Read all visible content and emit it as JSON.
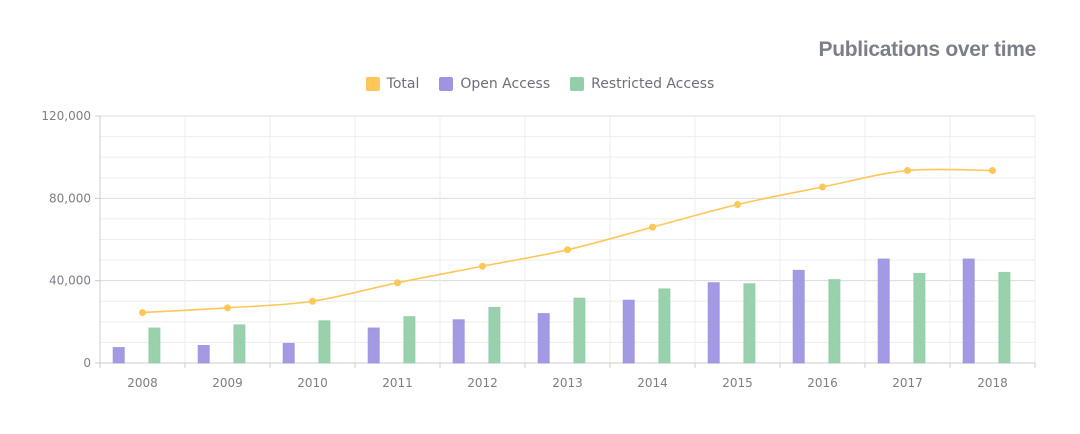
{
  "chart_data": {
    "type": "bar",
    "title": "Publications over time",
    "xlabel": "",
    "ylabel": "",
    "categories": [
      "2008",
      "2009",
      "2010",
      "2011",
      "2012",
      "2013",
      "2014",
      "2015",
      "2016",
      "2017",
      "2018"
    ],
    "ylim": [
      0,
      120000
    ],
    "yticks": [
      0,
      40000,
      80000,
      120000
    ],
    "ytick_labels": [
      "0",
      "40,000",
      "80,000",
      "120,000"
    ],
    "grid": true,
    "legend_position": "top-center",
    "series": [
      {
        "name": "Total",
        "type": "line",
        "color": "#ffc658",
        "values": [
          24500,
          26800,
          30000,
          39000,
          47000,
          55000,
          66000,
          77000,
          85500,
          93500,
          93500
        ]
      },
      {
        "name": "Open Access",
        "type": "bar",
        "color": "#9d95e0",
        "values": [
          7500,
          8500,
          9500,
          17000,
          21000,
          24000,
          30500,
          39000,
          45000,
          50500,
          50500
        ]
      },
      {
        "name": "Restricted Access",
        "type": "bar",
        "color": "#92cfa8",
        "values": [
          17000,
          18500,
          20500,
          22500,
          27000,
          31500,
          36000,
          38500,
          40500,
          43500,
          44000
        ]
      }
    ]
  }
}
